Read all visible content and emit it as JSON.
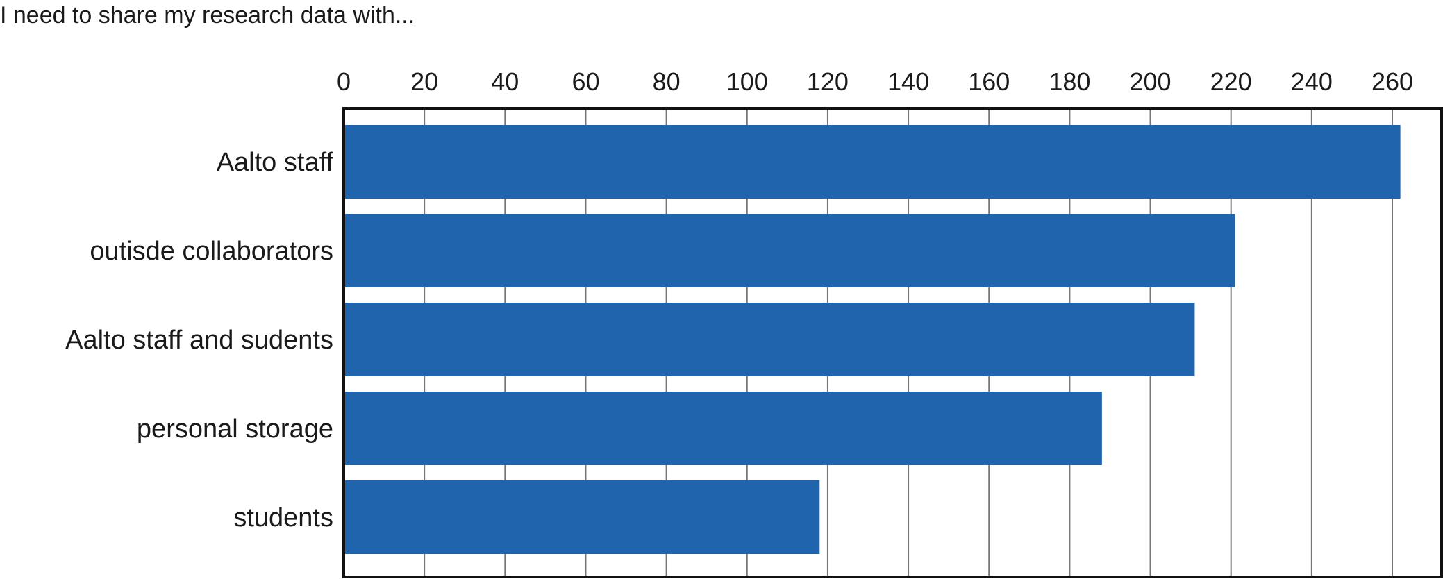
{
  "chart_data": {
    "type": "bar",
    "orientation": "horizontal",
    "title": "I need to share my research data with...",
    "xlabel": "",
    "ylabel": "",
    "categories": [
      "Aalto staff",
      "outisde collaborators",
      "Aalto staff and sudents",
      "personal storage",
      "students"
    ],
    "values": [
      262,
      221,
      211,
      188,
      118
    ],
    "xlim": [
      0,
      274
    ],
    "xticks": [
      "0",
      "20",
      "40",
      "60",
      "80",
      "100",
      "120",
      "140",
      "160",
      "180",
      "200",
      "220",
      "240",
      "260"
    ],
    "tick_values": [
      0,
      20,
      40,
      60,
      80,
      100,
      120,
      140,
      160,
      180,
      200,
      220,
      240,
      260
    ],
    "axis_position": "top",
    "grid": true,
    "legend": "none",
    "bar_color": "#1f64ad"
  }
}
